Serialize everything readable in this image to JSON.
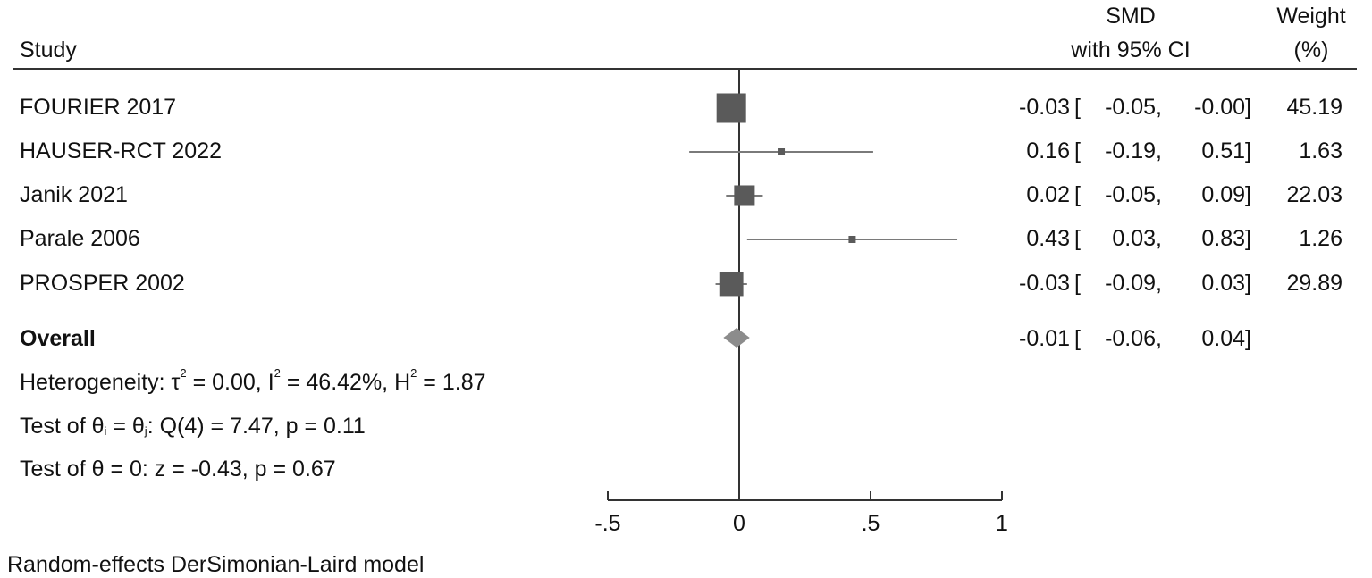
{
  "header": {
    "study": "Study",
    "smd_line1": "SMD",
    "smd_line2": "with 95% CI",
    "weight_line1": "Weight",
    "weight_line2": "(%)"
  },
  "chart_data": {
    "type": "forest",
    "effect_measure": "SMD",
    "studies": [
      {
        "name": "FOURIER 2017",
        "smd": -0.03,
        "lo": -0.05,
        "hi": -0.0,
        "weight": 45.19,
        "smd_text": "-0.03",
        "lo_text": "-0.05,",
        "hi_text": "-0.00]",
        "weight_text": "45.19"
      },
      {
        "name": "HAUSER-RCT 2022",
        "smd": 0.16,
        "lo": -0.19,
        "hi": 0.51,
        "weight": 1.63,
        "smd_text": "0.16",
        "lo_text": "-0.19,",
        "hi_text": "0.51]",
        "weight_text": "1.63"
      },
      {
        "name": "Janik 2021",
        "smd": 0.02,
        "lo": -0.05,
        "hi": 0.09,
        "weight": 22.03,
        "smd_text": "0.02",
        "lo_text": "-0.05,",
        "hi_text": "0.09]",
        "weight_text": "22.03"
      },
      {
        "name": "Parale 2006",
        "smd": 0.43,
        "lo": 0.03,
        "hi": 0.83,
        "weight": 1.26,
        "smd_text": "0.43",
        "lo_text": "0.03,",
        "hi_text": "0.83]",
        "weight_text": "1.26"
      },
      {
        "name": "PROSPER 2002",
        "smd": -0.03,
        "lo": -0.09,
        "hi": 0.03,
        "weight": 29.89,
        "smd_text": "-0.03",
        "lo_text": "-0.09,",
        "hi_text": "0.03]",
        "weight_text": "29.89"
      }
    ],
    "overall": {
      "label": "Overall",
      "smd": -0.01,
      "lo": -0.06,
      "hi": 0.04,
      "smd_text": "-0.01",
      "lo_text": "-0.06,",
      "hi_text": "0.04]"
    },
    "x_ticks": [
      -0.5,
      0,
      0.5,
      1
    ],
    "x_tick_labels": [
      "-.5",
      "0",
      ".5",
      "1"
    ],
    "xlim": [
      -0.5,
      1
    ],
    "null_line": 0,
    "colors": {
      "marker": "#5a5a5a",
      "ci_line": "#7a7a7a",
      "diamond": "#8c8c8c",
      "axis": "#333333"
    }
  },
  "stats": {
    "heterogeneity_prefix": "Heterogeneity: τ",
    "tau_sup": "2",
    "tau_val": " = 0.00, I",
    "i_sup": "2",
    "i_val": " = 46.42%, H",
    "h_sup": "2",
    "h_val": " = 1.87",
    "test1_a": "Test of θ",
    "test1_sub1": "i",
    "test1_b": " = θ",
    "test1_sub2": "j",
    "test1_c": ": Q(4) = 7.47, p = 0.11",
    "test2": "Test of θ = 0: z = -0.43, p = 0.67"
  },
  "footer": {
    "model": "Random-effects DerSimonian-Laird model"
  }
}
